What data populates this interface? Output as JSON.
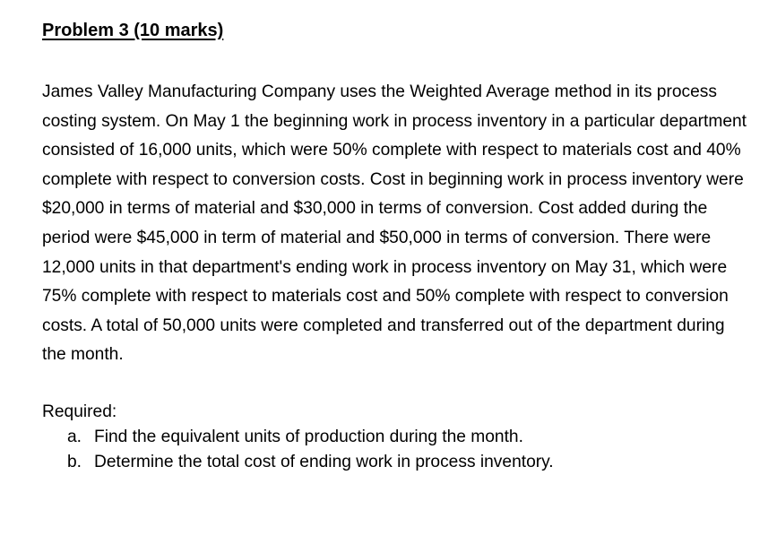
{
  "problem": {
    "title": "Problem 3 (10 marks)",
    "paragraph": "James Valley Manufacturing Company uses the Weighted Average method in its process costing system. On May 1 the beginning work in process inventory in a particular department consisted of 16,000 units, which were 50% complete with respect to materials cost and 40% complete with respect to conversion costs. Cost in beginning work in process inventory were $20,000 in terms of material and $30,000 in terms of conversion. Cost added during the period were $45,000 in term of material and $50,000 in terms of conversion. There were 12,000 units in that department's ending work in process inventory on May 31, which were 75% complete with respect to materials cost and 50% complete with respect to conversion costs. A total of 50,000 units were completed and transferred out of the department during the month.",
    "required_label": "Required:",
    "requirements": [
      {
        "marker": "a.",
        "text": "Find the equivalent units of production during the month."
      },
      {
        "marker": "b.",
        "text": "Determine the total cost of ending work in process inventory."
      }
    ]
  }
}
